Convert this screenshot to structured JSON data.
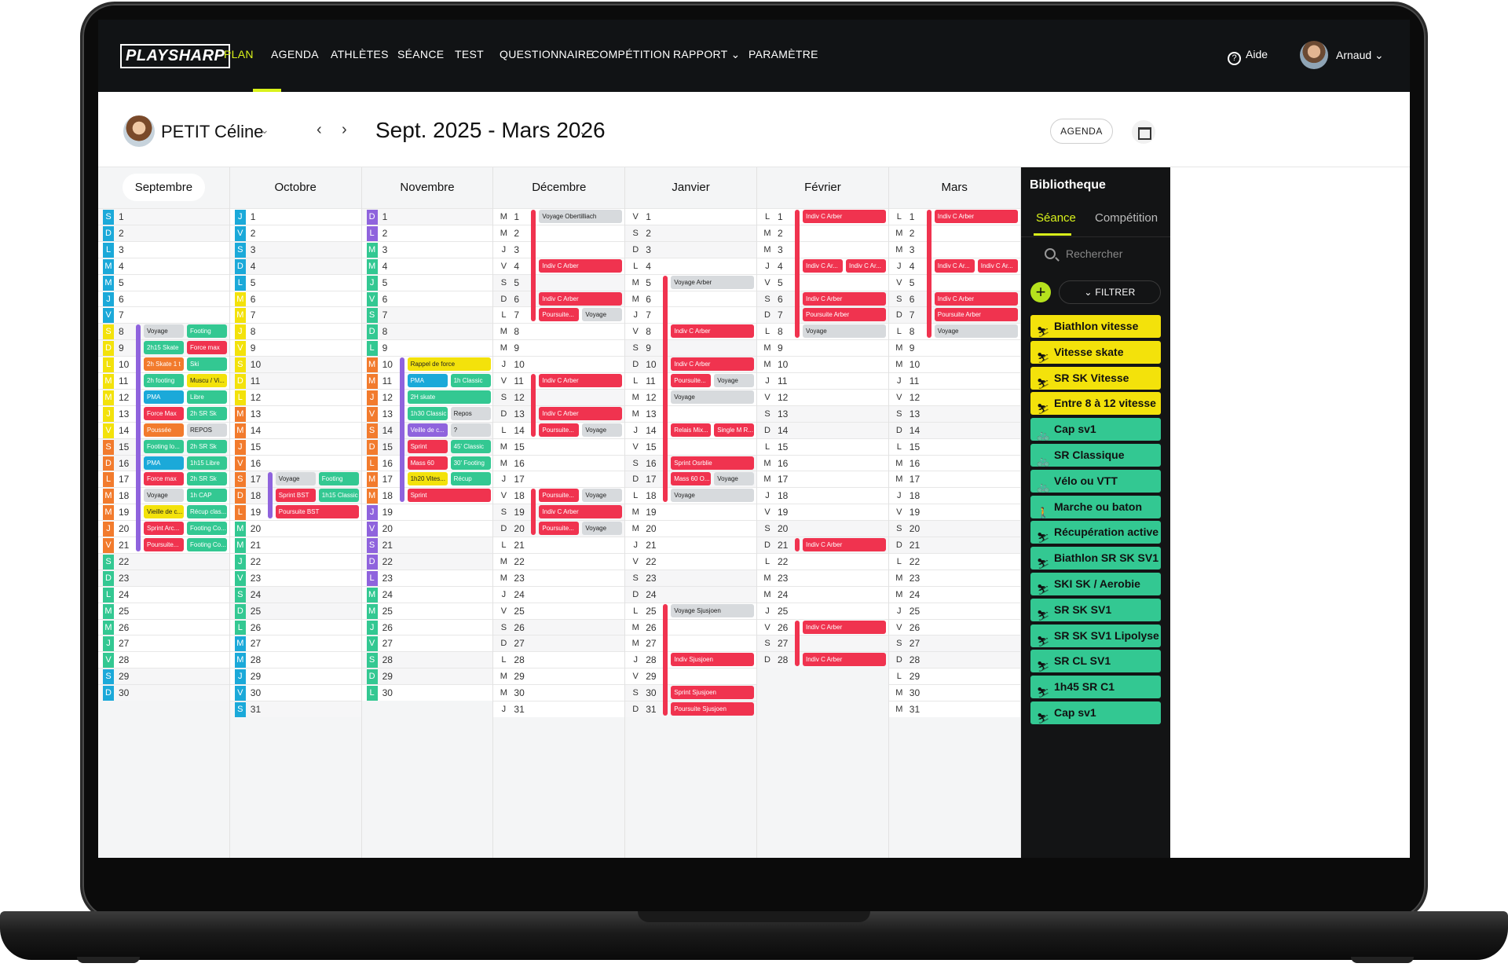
{
  "nav": {
    "logo": "PLAYSHARP",
    "items": [
      "PLAN",
      "AGENDA",
      "ATHLÈTES",
      "SÉANCE",
      "TEST",
      "QUESTIONNAIRE",
      "COMPÉTITION",
      "RAPPORT ⌄",
      "PARAMÈTRE"
    ],
    "help": "Aide",
    "user": "Arnaud ⌄"
  },
  "header": {
    "athlete": "PETIT Céline",
    "period": "Sept. 2025 - Mars 2026",
    "agenda_button": "AGENDA"
  },
  "colors": {
    "accent": "#d9f21b",
    "yellow": "#f3e20b",
    "teal": "#33c892",
    "blue": "#1ba9d9",
    "purple": "#8f63dd",
    "orange": "#f27b2d",
    "red": "#f0334f",
    "grey": "#d7dadd"
  },
  "months": [
    {
      "name": "Septembre",
      "days": 30,
      "letters": [
        "L",
        "M",
        "M",
        "J",
        "V",
        "S",
        "D"
      ],
      "first": 5,
      "bands": [
        [
          1,
          7,
          "blue"
        ],
        [
          8,
          14,
          "yellow"
        ],
        [
          15,
          21,
          "orange"
        ],
        [
          22,
          28,
          "teal"
        ],
        [
          29,
          30,
          "blue"
        ]
      ],
      "events": [
        [
          8,
          "Voyage",
          "grey",
          0
        ],
        [
          8,
          "Footing",
          "teal",
          1
        ],
        [
          9,
          "2h15 Skate",
          "teal",
          0
        ],
        [
          9,
          "Force max",
          "red",
          1
        ],
        [
          10,
          "2h Skate 1 t",
          "orange",
          0
        ],
        [
          10,
          "Ski",
          "teal",
          1
        ],
        [
          11,
          "2h footing",
          "teal",
          0
        ],
        [
          11,
          "Muscu / Vi...",
          "yellow",
          1
        ],
        [
          12,
          "PMA",
          "blue",
          0
        ],
        [
          12,
          "Libre",
          "teal",
          1
        ],
        [
          13,
          "Force Max",
          "red",
          0
        ],
        [
          13,
          "2h SR Sk",
          "teal",
          1
        ],
        [
          14,
          "Poussée",
          "orange",
          0
        ],
        [
          14,
          "REPOS",
          "grey",
          1
        ],
        [
          15,
          "Footing lo...",
          "teal",
          0
        ],
        [
          15,
          "2h SR Sk",
          "teal",
          1
        ],
        [
          16,
          "PMA",
          "blue",
          0
        ],
        [
          16,
          "1h15 Libre",
          "teal",
          1
        ],
        [
          17,
          "Force max",
          "red",
          0
        ],
        [
          17,
          "2h SR Sk",
          "teal",
          1
        ],
        [
          18,
          "Voyage",
          "grey",
          0
        ],
        [
          18,
          "1h CAP",
          "teal",
          1
        ],
        [
          19,
          "Vieille de c...",
          "yellow",
          0
        ],
        [
          19,
          "Récup clas...",
          "teal",
          1
        ],
        [
          20,
          "Sprint Arc...",
          "red",
          0
        ],
        [
          20,
          "Footing Co...",
          "teal",
          1
        ],
        [
          21,
          "Poursuite...",
          "red",
          0
        ],
        [
          21,
          "Footing Co...",
          "teal",
          1
        ]
      ]
    },
    {
      "name": "Octobre",
      "days": 31,
      "first": 3,
      "bands": [
        [
          1,
          5,
          "blue"
        ],
        [
          6,
          12,
          "yellow"
        ],
        [
          13,
          19,
          "orange"
        ],
        [
          20,
          26,
          "teal"
        ],
        [
          27,
          31,
          "blue"
        ]
      ],
      "events": [
        [
          17,
          "Voyage",
          "grey",
          0
        ],
        [
          17,
          "Footing",
          "teal",
          1
        ],
        [
          18,
          "Sprint BST",
          "red",
          0
        ],
        [
          18,
          "1h15 Classic",
          "teal",
          1
        ],
        [
          19,
          "Poursuite BST",
          "red",
          2
        ]
      ]
    },
    {
      "name": "Novembre",
      "days": 30,
      "first": 6,
      "bands": [
        [
          1,
          2,
          "purple"
        ],
        [
          3,
          9,
          "teal"
        ],
        [
          10,
          16,
          "orange"
        ],
        [
          17,
          18,
          "orange"
        ],
        [
          19,
          23,
          "purple"
        ],
        [
          24,
          24,
          "teal"
        ],
        [
          25,
          30,
          "teal"
        ]
      ],
      "events": [
        [
          10,
          "Rappel de force",
          "yellow",
          2
        ],
        [
          11,
          "PMA",
          "blue",
          0
        ],
        [
          11,
          "1h Classic",
          "teal",
          1
        ],
        [
          12,
          "2H skate",
          "teal",
          2
        ],
        [
          13,
          "1h30 Classic",
          "teal",
          0
        ],
        [
          13,
          "Repos",
          "grey",
          1
        ],
        [
          14,
          "Veille de c...",
          "purple",
          0
        ],
        [
          14,
          "?",
          "grey",
          1
        ],
        [
          15,
          "Sprint",
          "red",
          0
        ],
        [
          15,
          "45' Classic",
          "teal",
          1
        ],
        [
          16,
          "Mass 60",
          "red",
          0
        ],
        [
          16,
          "30' Footing",
          "teal",
          1
        ],
        [
          17,
          "1h20 Vites...",
          "yellow",
          0
        ],
        [
          17,
          "Récup",
          "teal",
          1
        ],
        [
          18,
          "Sprint",
          "red",
          2
        ]
      ]
    },
    {
      "name": "Décembre",
      "days": 31,
      "first": 1,
      "bands": [],
      "events": [
        [
          1,
          "Voyage Obertilliach",
          "grey",
          2
        ],
        [
          4,
          "Indiv C Arber",
          "red",
          2
        ],
        [
          6,
          "Indiv C Arber",
          "red",
          2
        ],
        [
          7,
          "Poursuite...",
          "red",
          0
        ],
        [
          7,
          "Voyage",
          "grey",
          1
        ],
        [
          11,
          "Indiv C Arber",
          "red",
          2
        ],
        [
          13,
          "Indiv C Arber",
          "red",
          2
        ],
        [
          14,
          "Poursuite...",
          "red",
          0
        ],
        [
          14,
          "Voyage",
          "grey",
          1
        ],
        [
          18,
          "Poursuite...",
          "red",
          0
        ],
        [
          18,
          "Voyage",
          "grey",
          1
        ],
        [
          19,
          "Indiv C Arber",
          "red",
          2
        ],
        [
          20,
          "Poursuite...",
          "red",
          0
        ],
        [
          20,
          "Voyage",
          "grey",
          1
        ]
      ]
    },
    {
      "name": "Janvier",
      "days": 31,
      "first": 4,
      "bands": [],
      "events": [
        [
          5,
          "Voyage Arber",
          "grey",
          2
        ],
        [
          8,
          "Indiv C Arber",
          "red",
          2
        ],
        [
          10,
          "Indiv C Arber",
          "red",
          2
        ],
        [
          11,
          "Poursuite...",
          "red",
          0
        ],
        [
          11,
          "Voyage",
          "grey",
          1
        ],
        [
          12,
          "Voyage",
          "grey",
          2
        ],
        [
          14,
          "Relais Mix...",
          "red",
          0
        ],
        [
          14,
          "Single M R...",
          "red",
          1
        ],
        [
          16,
          "Sprint Osrblie",
          "red",
          2
        ],
        [
          17,
          "Mass 60 O...",
          "red",
          0
        ],
        [
          17,
          "Voyage",
          "grey",
          1
        ],
        [
          18,
          "Voyage",
          "grey",
          2
        ],
        [
          25,
          "Voyage Sjusjoen",
          "grey",
          2
        ],
        [
          28,
          "Indiv Sjusjoen",
          "red",
          2
        ],
        [
          30,
          "Sprint Sjusjoen",
          "red",
          2
        ],
        [
          31,
          "Poursuite Sjusjoen",
          "red",
          2
        ]
      ]
    },
    {
      "name": "Février",
      "days": 28,
      "first": 0,
      "bands": [],
      "events": [
        [
          1,
          "Indiv C Arber",
          "red",
          2
        ],
        [
          4,
          "Indiv C Ar...",
          "red",
          0
        ],
        [
          4,
          "Indiv C Ar...",
          "red",
          1
        ],
        [
          6,
          "Indiv C Arber",
          "red",
          2
        ],
        [
          7,
          "Poursuite Arber",
          "red",
          2
        ],
        [
          8,
          "Voyage",
          "grey",
          2
        ],
        [
          21,
          "Indiv C Arber",
          "red",
          2
        ],
        [
          26,
          "Indiv C Arber",
          "red",
          2
        ],
        [
          28,
          "Indiv C Arber",
          "red",
          2
        ]
      ]
    },
    {
      "name": "Mars",
      "days": 31,
      "first": 0,
      "bands": [],
      "events": [
        [
          1,
          "Indiv C Arber",
          "red",
          2
        ],
        [
          4,
          "Indiv C Ar...",
          "red",
          0
        ],
        [
          4,
          "Indiv C Ar...",
          "red",
          1
        ],
        [
          6,
          "Indiv C Arber",
          "red",
          2
        ],
        [
          7,
          "Poursuite Arber",
          "red",
          2
        ],
        [
          8,
          "Voyage",
          "grey",
          2
        ]
      ]
    }
  ],
  "library": {
    "title": "Bibliotheque",
    "tab_seance": "Séance",
    "tab_competition": "Compétition",
    "search_placeholder": "Rechercher",
    "filter": "⌄   FILTRER",
    "add": "+",
    "items": [
      {
        "label": "Biathlon vitesse",
        "color": "yellow",
        "icon": "ski-icon"
      },
      {
        "label": "Vitesse skate",
        "color": "yellow",
        "icon": "ski-icon"
      },
      {
        "label": "SR SK Vitesse",
        "color": "yellow",
        "icon": "ski-icon"
      },
      {
        "label": "Entre 8 à 12 vitesse",
        "color": "yellow",
        "icon": "ski-icon"
      },
      {
        "label": "Cap sv1",
        "color": "teal",
        "icon": "bike-icon"
      },
      {
        "label": "SR Classique",
        "color": "teal",
        "icon": "bike-icon"
      },
      {
        "label": "Vélo ou VTT",
        "color": "teal",
        "icon": "bike-icon"
      },
      {
        "label": "Marche ou baton",
        "color": "teal",
        "icon": "walk-icon"
      },
      {
        "label": "Récupération active",
        "color": "teal",
        "icon": "ski-icon"
      },
      {
        "label": "Biathlon SR SK SV1",
        "color": "teal",
        "icon": "ski-icon"
      },
      {
        "label": "SKI SK / Aerobie",
        "color": "teal",
        "icon": "ski-icon"
      },
      {
        "label": "SR SK SV1",
        "color": "teal",
        "icon": "ski-icon"
      },
      {
        "label": "SR SK SV1 Lipolyse",
        "color": "teal",
        "icon": "ski-icon"
      },
      {
        "label": "SR CL SV1",
        "color": "teal",
        "icon": "ski-icon"
      },
      {
        "label": "1h45 SR C1",
        "color": "teal",
        "icon": "ski-icon"
      },
      {
        "label": "Cap sv1",
        "color": "teal",
        "icon": "ski-icon"
      }
    ]
  }
}
